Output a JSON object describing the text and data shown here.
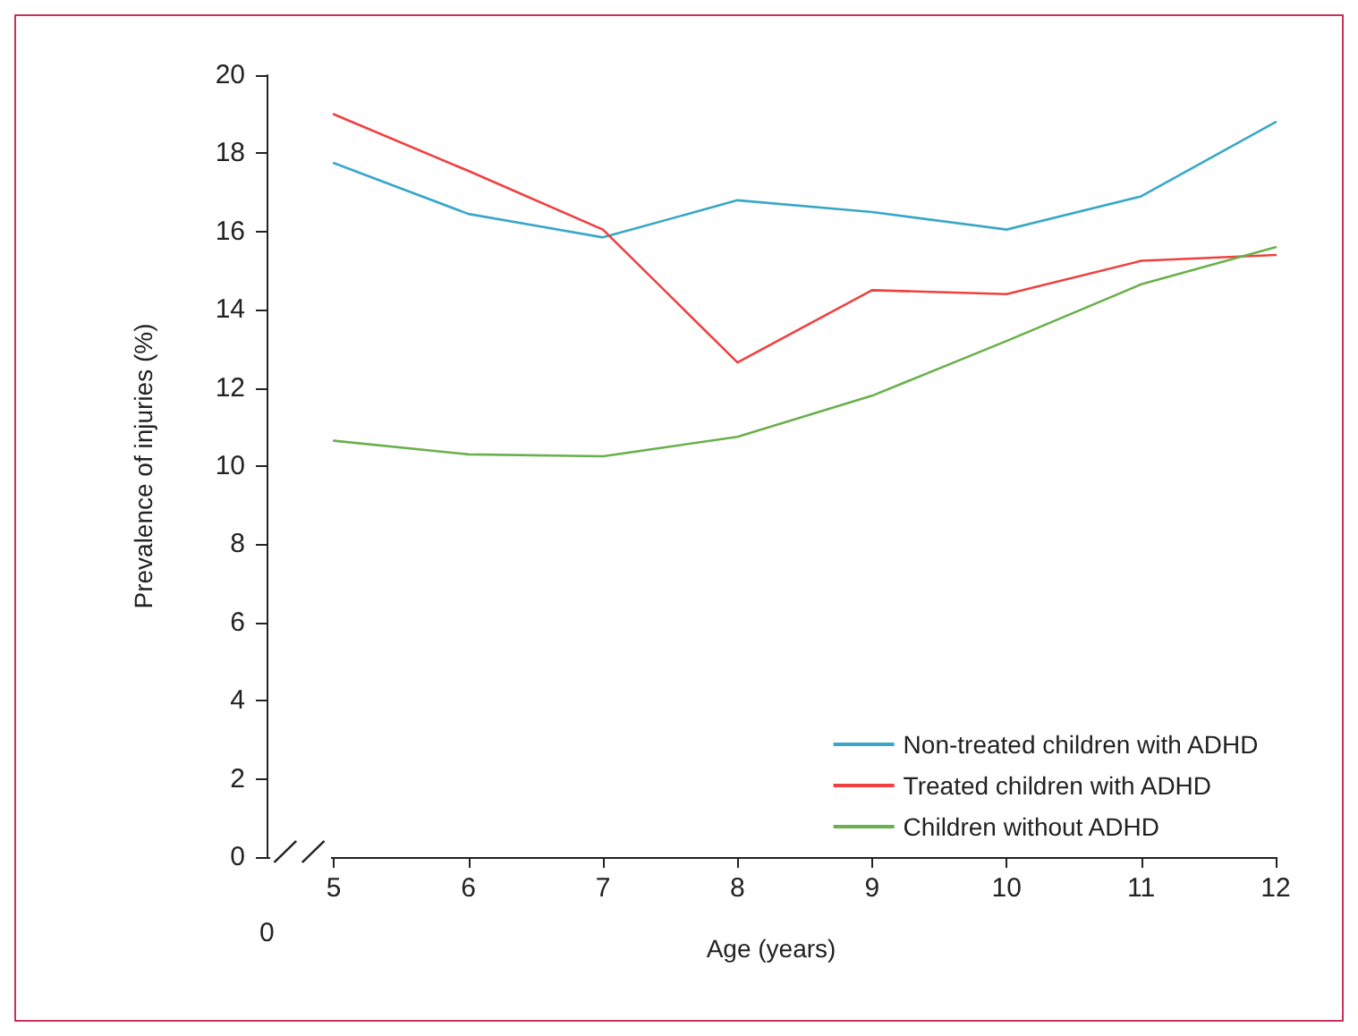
{
  "chart_data": {
    "type": "line",
    "xlabel": "Age (years)",
    "ylabel": "Prevalence of injuries (%)",
    "x": [
      5,
      6,
      7,
      8,
      9,
      10,
      11,
      12
    ],
    "series": [
      {
        "name": "Non-treated children with ADHD",
        "color": "#3aa7c8",
        "values": [
          17.75,
          16.45,
          15.85,
          16.8,
          16.5,
          16.05,
          16.9,
          18.8
        ]
      },
      {
        "name": "Treated children with ADHD",
        "color": "#f04040",
        "values": [
          19.0,
          17.55,
          16.05,
          12.65,
          14.5,
          14.4,
          15.25,
          15.4
        ]
      },
      {
        "name": "Children without ADHD",
        "color": "#6ab04c",
        "values": [
          10.65,
          10.3,
          10.25,
          10.75,
          11.8,
          13.2,
          14.65,
          15.6
        ]
      }
    ],
    "xlim": [
      4.5,
      12
    ],
    "xticks": [
      5,
      6,
      7,
      8,
      9,
      10,
      11,
      12
    ],
    "annotations": [
      "0"
    ],
    "ylim": [
      0,
      20
    ],
    "yticks": [
      0,
      2,
      4,
      6,
      8,
      10,
      12,
      14,
      16,
      18,
      20
    ],
    "grid": false,
    "legend": "bottom right",
    "marker": "none",
    "line_style": "solid"
  }
}
